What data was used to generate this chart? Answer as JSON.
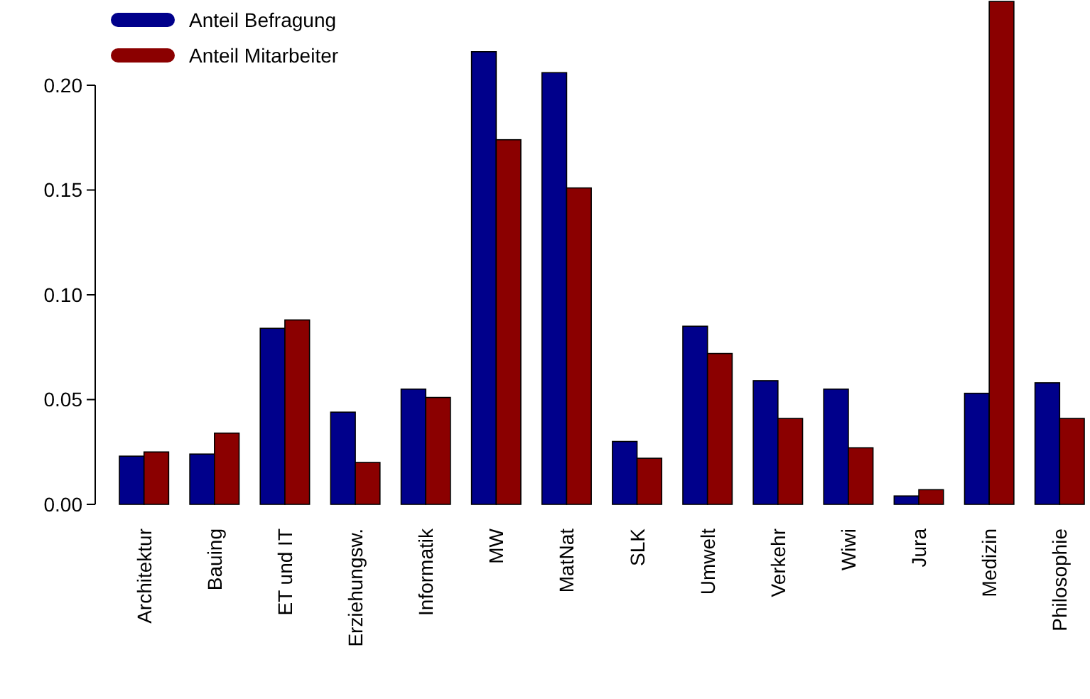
{
  "chart_data": {
    "type": "bar",
    "categories": [
      "Architektur",
      "Bauing",
      "ET und IT",
      "Erziehungsw.",
      "Informatik",
      "MW",
      "MatNat",
      "SLK",
      "Umwelt",
      "Verkehr",
      "Wiwi",
      "Jura",
      "Medizin",
      "Philosophie"
    ],
    "series": [
      {
        "name": "Anteil Befragung",
        "color": "#00008b",
        "values": [
          0.023,
          0.024,
          0.084,
          0.044,
          0.055,
          0.216,
          0.206,
          0.03,
          0.085,
          0.059,
          0.055,
          0.004,
          0.053,
          0.058
        ]
      },
      {
        "name": "Anteil Mitarbeiter",
        "color": "#8b0000",
        "values": [
          0.025,
          0.034,
          0.088,
          0.02,
          0.051,
          0.174,
          0.151,
          0.022,
          0.072,
          0.041,
          0.027,
          0.007,
          0.24,
          0.041
        ]
      }
    ],
    "ylim": [
      0,
      0.24
    ],
    "yticks": [
      {
        "value": 0,
        "label": "0.00"
      },
      {
        "value": 0.05,
        "label": "0.05"
      },
      {
        "value": 0.1,
        "label": "0.10"
      },
      {
        "value": 0.15,
        "label": "0.15"
      },
      {
        "value": 0.2,
        "label": "0.20"
      }
    ],
    "legend": "top left",
    "grid": false
  }
}
